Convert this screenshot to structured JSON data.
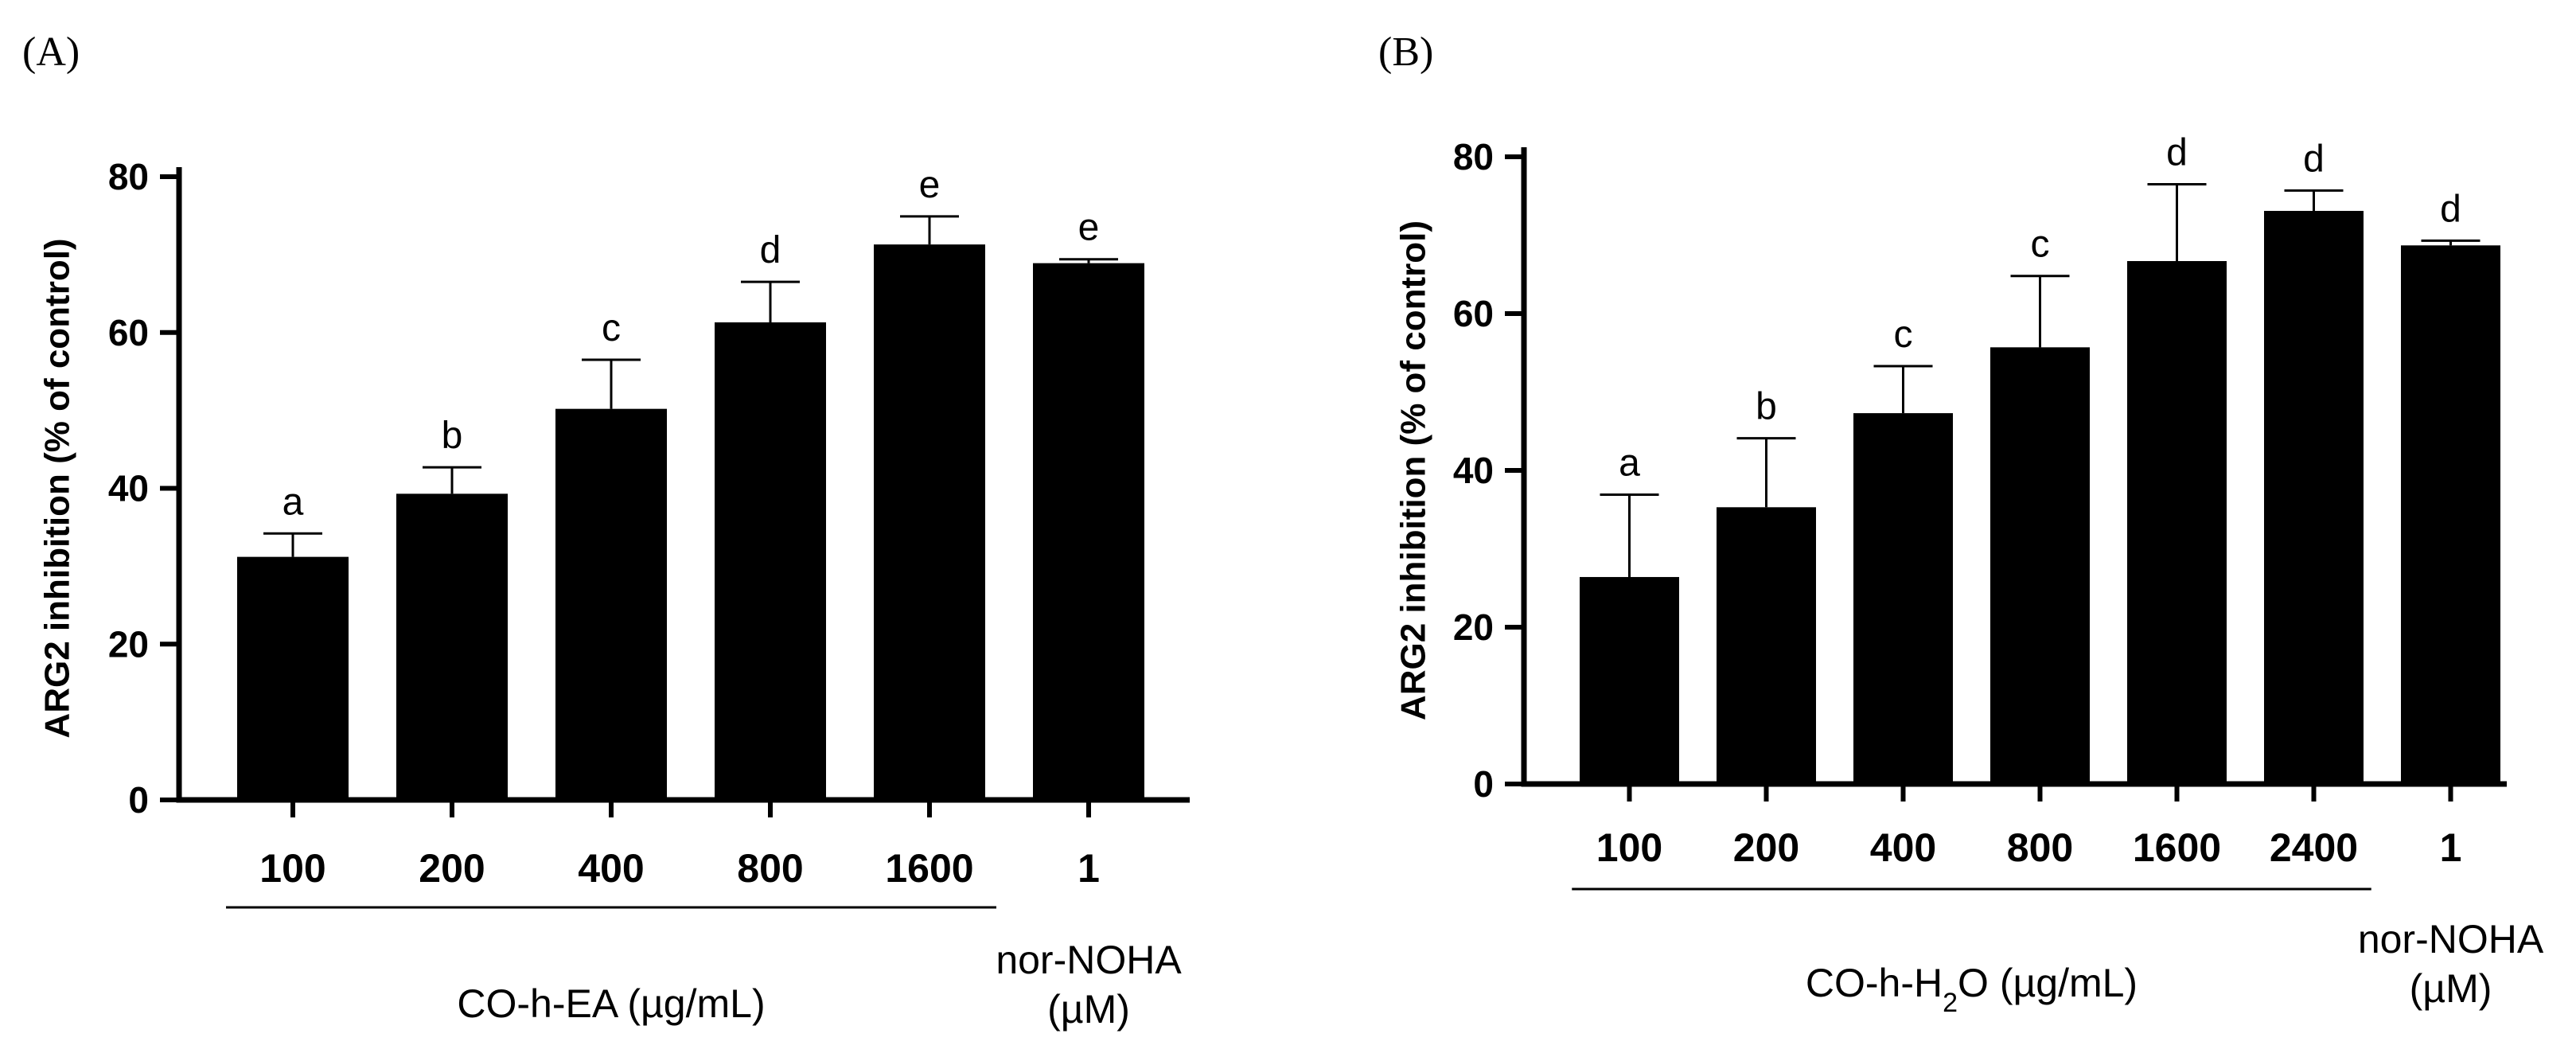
{
  "chart_data": [
    {
      "type": "bar",
      "panel_label": "(A)",
      "ylabel": "ARG2 inhibition (% of control)",
      "ylim": [
        0,
        80
      ],
      "yticks": [
        0,
        20,
        40,
        60,
        80
      ],
      "categories": [
        "100",
        "200",
        "400",
        "800",
        "1600",
        "1"
      ],
      "values": [
        31.2,
        39.3,
        50.2,
        61.3,
        71.3,
        68.9
      ],
      "errors": [
        3.0,
        3.4,
        6.3,
        5.2,
        3.6,
        0.5
      ],
      "significance": [
        "a",
        "b",
        "c",
        "d",
        "e",
        "e"
      ],
      "groups": [
        {
          "label": "CO-h-EA (µg/mL)",
          "start": 0,
          "end": 4,
          "underline": true
        },
        {
          "label_lines": [
            "nor-NOHA",
            "(µM)"
          ],
          "start": 5,
          "end": 5,
          "underline": false
        }
      ]
    },
    {
      "type": "bar",
      "panel_label": "(B)",
      "ylabel": "ARG2 inhibition (% of control)",
      "ylim": [
        0,
        80
      ],
      "yticks": [
        0,
        20,
        40,
        60,
        80
      ],
      "categories": [
        "100",
        "200",
        "400",
        "800",
        "1600",
        "2400",
        "1"
      ],
      "values": [
        26.4,
        35.3,
        47.3,
        55.7,
        66.7,
        73.1,
        68.7
      ],
      "errors": [
        10.5,
        8.8,
        6.0,
        9.1,
        9.8,
        2.6,
        0.6
      ],
      "significance": [
        "a",
        "b",
        "c",
        "c",
        "d",
        "d",
        "d"
      ],
      "groups": [
        {
          "label": "CO-h-H",
          "label_sub": "2",
          "label_end": "O (µg/mL)",
          "start": 0,
          "end": 5,
          "underline": true
        },
        {
          "label_lines": [
            "nor-NOHA",
            "(µM)"
          ],
          "start": 6,
          "end": 6,
          "underline": false
        }
      ]
    }
  ]
}
